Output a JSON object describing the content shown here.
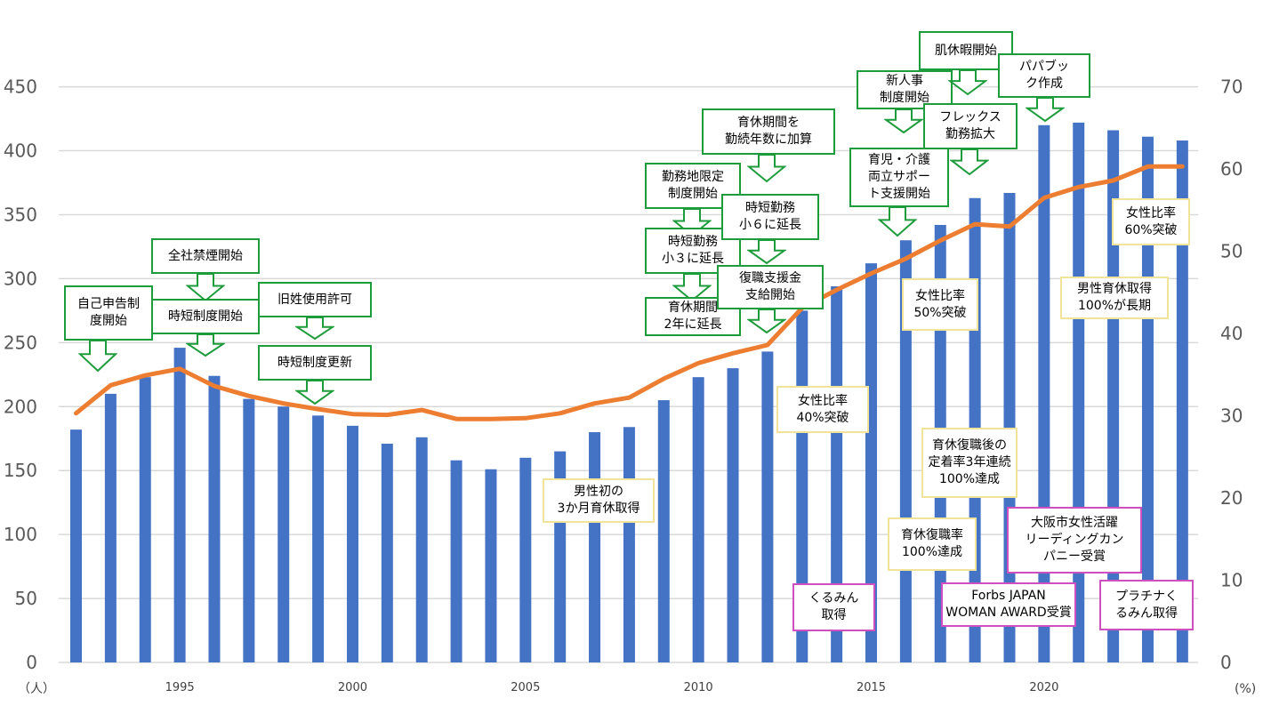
{
  "chart_data": {
    "type": "bar",
    "left_axis": {
      "unit_label": "（人）",
      "ticks": [
        0,
        50,
        100,
        150,
        200,
        250,
        300,
        350,
        400,
        450
      ],
      "ylim": [
        0,
        450
      ]
    },
    "right_axis": {
      "unit_label": "(%)",
      "ticks": [
        0,
        10,
        20,
        30,
        40,
        50,
        60,
        70
      ],
      "ylim": [
        0,
        70
      ]
    },
    "x_tick_labels": [
      "1995",
      "2000",
      "2005",
      "2010",
      "2015",
      "2020"
    ],
    "years": [
      1992,
      1993,
      1994,
      1995,
      1996,
      1997,
      1998,
      1999,
      2000,
      2001,
      2002,
      2003,
      2004,
      2005,
      2006,
      2007,
      2008,
      2009,
      2010,
      2011,
      2012,
      2013,
      2014,
      2015,
      2016,
      2017,
      2018,
      2019,
      2020,
      2021,
      2022,
      2023,
      2024
    ],
    "series": [
      {
        "type": "bar",
        "axis": "left",
        "color": "#4472c4",
        "values": [
          182,
          210,
          223,
          246,
          224,
          206,
          200,
          193,
          185,
          171,
          176,
          158,
          151,
          160,
          165,
          180,
          184,
          205,
          223,
          230,
          243,
          275,
          294,
          312,
          330,
          342,
          363,
          367,
          420,
          422,
          416,
          411,
          408
        ]
      },
      {
        "type": "line",
        "axis": "right",
        "color": "#ed7d31",
        "values": [
          30.3,
          33.7,
          34.9,
          35.7,
          33.6,
          32.4,
          31.5,
          30.8,
          30.2,
          30.1,
          30.7,
          29.6,
          29.6,
          29.7,
          30.3,
          31.5,
          32.2,
          34.5,
          36.4,
          37.6,
          38.6,
          43.1,
          45.3,
          47.3,
          49.1,
          51.3,
          53.3,
          53.0,
          56.5,
          57.8,
          58.6,
          60.3,
          60.3
        ]
      }
    ]
  },
  "annotations": [
    {
      "text": "自己申告制\n度開始",
      "color": "green"
    },
    {
      "text": "全社禁煙開始",
      "color": "green"
    },
    {
      "text": "時短制度開始",
      "color": "green"
    },
    {
      "text": "旧姓使用許可",
      "color": "green"
    },
    {
      "text": "時短制度更新",
      "color": "green"
    },
    {
      "text": "男性初の\n3か月育休取得",
      "color": "yellow"
    },
    {
      "text": "勤務地限定\n制度開始",
      "color": "green"
    },
    {
      "text": "時短勤務\n小３に延長",
      "color": "green"
    },
    {
      "text": "育休期間\n2年に延長",
      "color": "green"
    },
    {
      "text": "育休期間を\n勤続年数に加算",
      "color": "green"
    },
    {
      "text": "時短勤務\n小６に延長",
      "color": "green"
    },
    {
      "text": "復職支援金\n支給開始",
      "color": "green"
    },
    {
      "text": "女性比率\n40%突破",
      "color": "yellow"
    },
    {
      "text": "くるみん\n取得",
      "color": "pink"
    },
    {
      "text": "新人事\n制度開始",
      "color": "green"
    },
    {
      "text": "肌休暇開始",
      "color": "green"
    },
    {
      "text": "パパブッ\nク作成",
      "color": "green"
    },
    {
      "text": "フレックス\n勤務拡大",
      "color": "green"
    },
    {
      "text": "育児・介護\n両立サポー\nト支援開始",
      "color": "green"
    },
    {
      "text": "女性比率\n50%突破",
      "color": "yellow"
    },
    {
      "text": "育休復職後の\n定着率3年連続\n100%達成",
      "color": "yellow"
    },
    {
      "text": "育休復職率\n100%達成",
      "color": "yellow"
    },
    {
      "text": "Forbs JAPAN\nWOMAN AWARD受賞",
      "color": "pink"
    },
    {
      "text": "女性比率\n60%突破",
      "color": "yellow"
    },
    {
      "text": "男性育休取得\n100%が長期",
      "color": "yellow"
    },
    {
      "text": "大阪市女性活躍\nリーディングカン\nパニー受賞",
      "color": "pink"
    },
    {
      "text": "プラチナく\nるみん取得",
      "color": "pink"
    }
  ]
}
